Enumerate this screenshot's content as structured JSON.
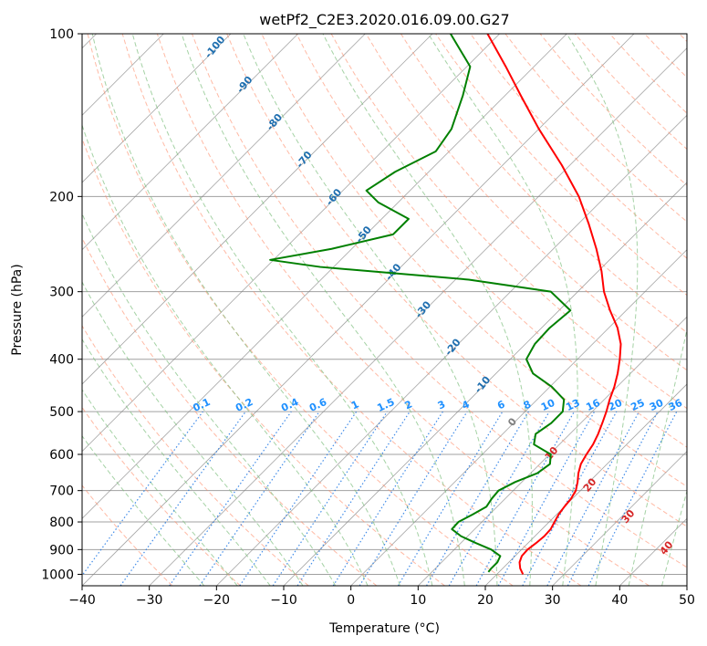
{
  "chart_data": {
    "type": "line",
    "title": "wetPf2_C2E3.2020.016.09.00.G27",
    "xlabel": "Temperature (°C)",
    "ylabel": "Pressure (hPa)",
    "xlim": [
      -40,
      50
    ],
    "ylim": [
      1050,
      100
    ],
    "y_scale": "log",
    "grid": true,
    "x_ticks": [
      -40,
      -30,
      -20,
      -10,
      0,
      10,
      20,
      30,
      40,
      50
    ],
    "x_tick_labels": [
      "−40",
      "−30",
      "−20",
      "−10",
      "0",
      "10",
      "20",
      "30",
      "40",
      "50"
    ],
    "y_ticks": [
      100,
      200,
      300,
      400,
      500,
      600,
      700,
      800,
      900,
      1000
    ],
    "y_tick_labels": [
      "100",
      "200",
      "300",
      "400",
      "500",
      "600",
      "700",
      "800",
      "900",
      "1000"
    ],
    "series": [
      {
        "role": "temperature",
        "color": "#ff0000",
        "points": [
          {
            "p": 1000,
            "t": 23.9
          },
          {
            "p": 975,
            "t": 22.6
          },
          {
            "p": 950,
            "t": 21.6
          },
          {
            "p": 925,
            "t": 21.0
          },
          {
            "p": 900,
            "t": 20.9
          },
          {
            "p": 875,
            "t": 21.2
          },
          {
            "p": 850,
            "t": 21.4
          },
          {
            "p": 825,
            "t": 21.3
          },
          {
            "p": 800,
            "t": 20.8
          },
          {
            "p": 775,
            "t": 20.3
          },
          {
            "p": 750,
            "t": 20.0
          },
          {
            "p": 725,
            "t": 19.8
          },
          {
            "p": 700,
            "t": 19.3
          },
          {
            "p": 675,
            "t": 18.3
          },
          {
            "p": 650,
            "t": 17.1
          },
          {
            "p": 625,
            "t": 16.1
          },
          {
            "p": 600,
            "t": 15.5
          },
          {
            "p": 575,
            "t": 15.0
          },
          {
            "p": 550,
            "t": 14.2
          },
          {
            "p": 525,
            "t": 13.2
          },
          {
            "p": 500,
            "t": 12.1
          },
          {
            "p": 475,
            "t": 10.8
          },
          {
            "p": 450,
            "t": 9.6
          },
          {
            "p": 425,
            "t": 8.1
          },
          {
            "p": 400,
            "t": 6.3
          },
          {
            "p": 375,
            "t": 4.2
          },
          {
            "p": 350,
            "t": 1.3
          },
          {
            "p": 325,
            "t": -2.4
          },
          {
            "p": 300,
            "t": -6.1
          },
          {
            "p": 275,
            "t": -9.5
          },
          {
            "p": 250,
            "t": -13.6
          },
          {
            "p": 225,
            "t": -18.4
          },
          {
            "p": 200,
            "t": -24.0
          },
          {
            "p": 175,
            "t": -31.2
          },
          {
            "p": 150,
            "t": -40.0
          },
          {
            "p": 130,
            "t": -47.7
          },
          {
            "p": 115,
            "t": -54.2
          },
          {
            "p": 100,
            "t": -61.8
          }
        ]
      },
      {
        "role": "dewpoint",
        "color": "#008000",
        "points": [
          {
            "p": 990,
            "t": 18.4
          },
          {
            "p": 975,
            "t": 18.3
          },
          {
            "p": 950,
            "t": 18.3
          },
          {
            "p": 925,
            "t": 17.8
          },
          {
            "p": 900,
            "t": 15.5
          },
          {
            "p": 875,
            "t": 12.2
          },
          {
            "p": 850,
            "t": 9.0
          },
          {
            "p": 825,
            "t": 6.6
          },
          {
            "p": 800,
            "t": 6.5
          },
          {
            "p": 775,
            "t": 7.5
          },
          {
            "p": 750,
            "t": 8.4
          },
          {
            "p": 725,
            "t": 8.0
          },
          {
            "p": 700,
            "t": 7.8
          },
          {
            "p": 675,
            "t": 9.0
          },
          {
            "p": 650,
            "t": 11.0
          },
          {
            "p": 625,
            "t": 11.5
          },
          {
            "p": 600,
            "t": 10.2
          },
          {
            "p": 575,
            "t": 6.2
          },
          {
            "p": 550,
            "t": 4.9
          },
          {
            "p": 525,
            "t": 5.6
          },
          {
            "p": 500,
            "t": 5.6
          },
          {
            "p": 475,
            "t": 4.0
          },
          {
            "p": 450,
            "t": 0.3
          },
          {
            "p": 425,
            "t": -4.5
          },
          {
            "p": 400,
            "t": -7.6
          },
          {
            "p": 375,
            "t": -8.6
          },
          {
            "p": 350,
            "t": -8.8
          },
          {
            "p": 325,
            "t": -8.3
          },
          {
            "p": 300,
            "t": -14.0
          },
          {
            "p": 285,
            "t": -28.0
          },
          {
            "p": 270,
            "t": -52.0
          },
          {
            "p": 262,
            "t": -60.5
          },
          {
            "p": 250,
            "t": -53.0
          },
          {
            "p": 235,
            "t": -46.0
          },
          {
            "p": 220,
            "t": -46.0
          },
          {
            "p": 205,
            "t": -53.0
          },
          {
            "p": 195,
            "t": -56.5
          },
          {
            "p": 180,
            "t": -55.0
          },
          {
            "p": 165,
            "t": -52.0
          },
          {
            "p": 150,
            "t": -53.0
          },
          {
            "p": 130,
            "t": -56.3
          },
          {
            "p": 115,
            "t": -59.5
          },
          {
            "p": 100,
            "t": -67.3
          }
        ]
      }
    ],
    "skew_degrees": 45,
    "mixing_ratio_labels": [
      "0.1",
      "0.2",
      "0.4",
      "0.6",
      "1",
      "1.5",
      "2",
      "3",
      "4",
      "6",
      "8",
      "10",
      "13",
      "16",
      "20",
      "25",
      "30",
      "36"
    ],
    "moist_adiabat_labels": [
      "-100",
      "-90",
      "-80",
      "-70",
      "-60",
      "-50",
      "-40",
      "-30",
      "-20",
      "-10",
      "0",
      "10",
      "20",
      "30",
      "40"
    ],
    "colors": {
      "isotherm": "#808080",
      "isobar": "#a0a0a0",
      "dry_adiabat": "#ff8c69",
      "moist_adiabat": "#7fbf7f",
      "mixing_ratio": "#1f77e4",
      "label_cold": "#1f6fb0",
      "label_warm": "#d62728",
      "label_zero": "#808080",
      "mixing_label": "#1e90ff",
      "temperature": "#ff0000",
      "dewpoint": "#008000"
    }
  }
}
